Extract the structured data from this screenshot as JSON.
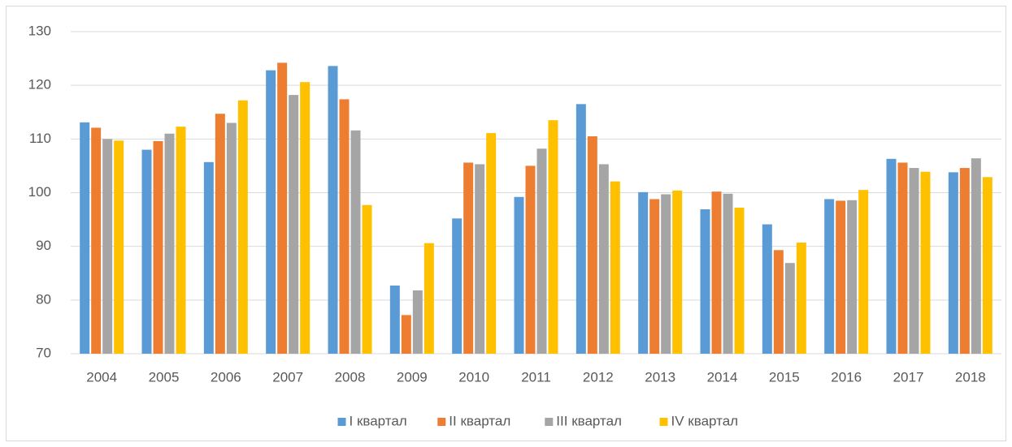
{
  "chart_data": {
    "type": "bar",
    "categories": [
      "2004",
      "2005",
      "2006",
      "2007",
      "2008",
      "2009",
      "2010",
      "2011",
      "2012",
      "2013",
      "2014",
      "2015",
      "2016",
      "2017",
      "2018"
    ],
    "series": [
      {
        "name": "I квартал",
        "color": "#5b9bd5",
        "values": [
          113.1,
          108,
          105.7,
          122.8,
          123.6,
          82.7,
          95.2,
          99.2,
          116.5,
          100.1,
          96.9,
          94.1,
          98.8,
          106.3,
          103.8
        ]
      },
      {
        "name": "II квартал",
        "color": "#ed7d31",
        "values": [
          112.1,
          109.6,
          114.7,
          124.2,
          117.4,
          77.2,
          105.6,
          105,
          110.5,
          98.8,
          100.2,
          89.3,
          98.5,
          105.6,
          104.6
        ]
      },
      {
        "name": "III квартал",
        "color": "#a5a5a5",
        "values": [
          110,
          111,
          113,
          118.2,
          111.6,
          81.8,
          105.3,
          108.2,
          105.3,
          99.7,
          99.8,
          86.9,
          98.6,
          104.6,
          106.4
        ]
      },
      {
        "name": "IV квартал",
        "color": "#ffc000",
        "values": [
          109.7,
          112.3,
          117.2,
          120.6,
          97.7,
          90.6,
          111.1,
          113.5,
          102.1,
          100.4,
          97.2,
          90.7,
          100.5,
          103.9,
          102.9
        ]
      }
    ],
    "ylim": [
      70,
      130
    ],
    "yticks": [
      70,
      80,
      90,
      100,
      110,
      120,
      130
    ],
    "grid": true,
    "legend": "bottom"
  }
}
